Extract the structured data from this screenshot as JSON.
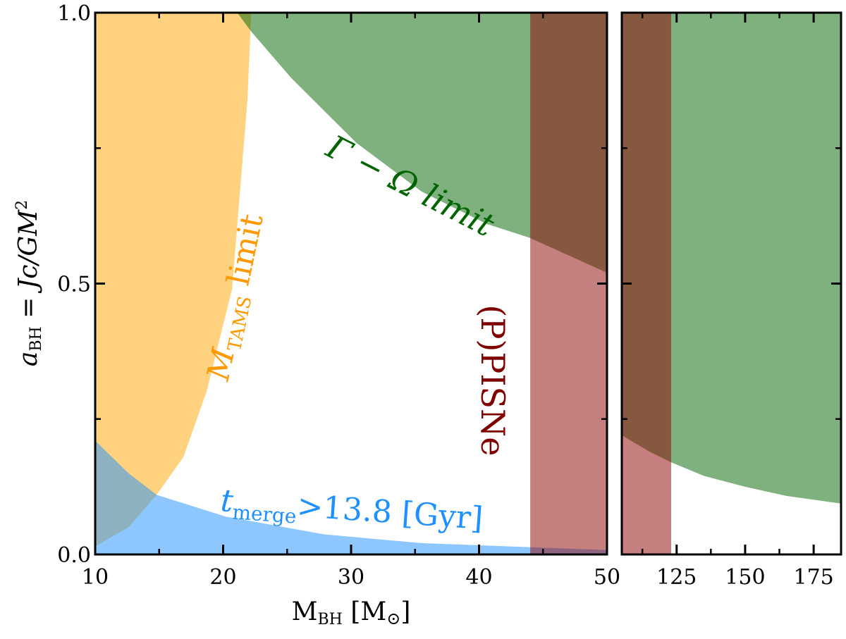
{
  "chart_data": [
    {
      "panel": "left",
      "type": "area",
      "xlim": [
        10,
        50
      ],
      "ylim": [
        0,
        1
      ],
      "xticks": [
        "10",
        "20",
        "30",
        "40",
        "50"
      ],
      "xtick_values": [
        10,
        20,
        30,
        40,
        50
      ],
      "yticks": [
        "0.0",
        "0.5",
        "1.0"
      ],
      "ytick_values": [
        0,
        0.5,
        1
      ],
      "xlabel": {
        "main": "M",
        "sub": "BH",
        "rest": " [M",
        "sun": "⊙",
        "end": "]"
      },
      "ylabel": {
        "a": "a",
        "sub": "BH",
        "rest": " = Jc/GM",
        "sup": "2"
      },
      "series": [
        {
          "name": "M_TAMS limit",
          "color": "#ffa500",
          "region": "left-of-curve",
          "x": [
            10,
            12.6,
            14.8,
            16.9,
            18.7,
            20.7,
            21.9,
            22.2
          ],
          "y": [
            0.015,
            0.05,
            0.11,
            0.18,
            0.3,
            0.49,
            0.84,
            1.0
          ]
        },
        {
          "name": "Gamma-Omega limit",
          "color": "#006400",
          "region": "above-curve",
          "x": [
            21.1,
            22.2,
            25.3,
            30.4,
            35.5,
            40.6,
            43.9,
            50
          ],
          "y": [
            1.0,
            0.965,
            0.88,
            0.76,
            0.67,
            0.61,
            0.585,
            0.52
          ]
        },
        {
          "name": "t_merge > 13.8 Gyr",
          "color": "#1e90ff",
          "region": "below-curve",
          "x": [
            10,
            12.6,
            14.8,
            20.2,
            27.9,
            35.5,
            50
          ],
          "y": [
            0.21,
            0.15,
            0.11,
            0.07,
            0.037,
            0.021,
            0.008
          ]
        },
        {
          "name": "(P)PISNe",
          "color": "#8b0000",
          "region": "vertical-band",
          "xrange": [
            44,
            50
          ]
        }
      ],
      "annotations": {
        "gamma_omega": "Γ − Ω limit",
        "tams_m": "M",
        "tams_sub": "TAMS",
        "tams_rest": " limit",
        "pisne": "(P)PISNe",
        "tmerge_t": "t",
        "tmerge_sub": "merge",
        "tmerge_rest": ">13.8 [Gyr]"
      }
    },
    {
      "panel": "right",
      "type": "area",
      "xlim": [
        105,
        185
      ],
      "ylim": [
        0,
        1
      ],
      "xticks": [
        "125",
        "150",
        "175"
      ],
      "xtick_values": [
        125,
        150,
        175
      ],
      "series": [
        {
          "name": "Gamma-Omega limit",
          "color": "#006400",
          "region": "above-curve",
          "x": [
            105,
            115,
            123,
            135,
            150,
            165,
            185
          ],
          "y": [
            0.22,
            0.19,
            0.17,
            0.145,
            0.125,
            0.108,
            0.094
          ]
        },
        {
          "name": "(P)PISNe",
          "color": "#8b0000",
          "region": "vertical-band",
          "xrange": [
            105,
            123
          ]
        }
      ]
    }
  ]
}
